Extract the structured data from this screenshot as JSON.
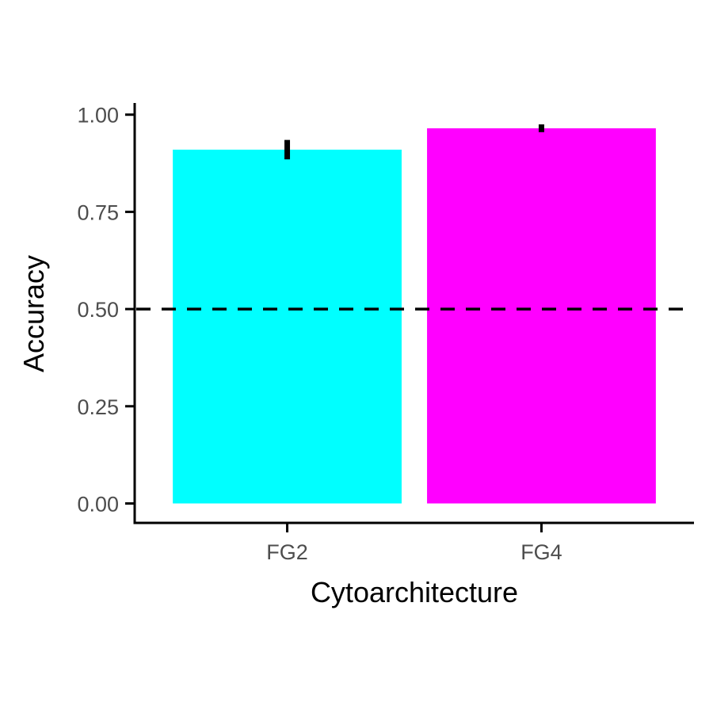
{
  "chart_data": {
    "type": "bar",
    "title": "",
    "xlabel": "Cytoarchitecture",
    "ylabel": "Accuracy",
    "categories": [
      "FG2",
      "FG4"
    ],
    "values": [
      0.91,
      0.965
    ],
    "error_bars": [
      {
        "low": 0.885,
        "high": 0.935
      },
      {
        "low": 0.955,
        "high": 0.975
      }
    ],
    "bar_colors": [
      "#00ffff",
      "#ff00ff"
    ],
    "ylim": [
      -0.05,
      1.03
    ],
    "yticks": [
      0.0,
      0.25,
      0.5,
      0.75,
      1.0
    ],
    "ytick_labels": [
      "0.00",
      "0.25",
      "0.50",
      "0.75",
      "1.00"
    ],
    "reference_line": {
      "y": 0.5,
      "style": "dashed",
      "color": "#000000"
    },
    "grid": false,
    "legend": "none"
  }
}
